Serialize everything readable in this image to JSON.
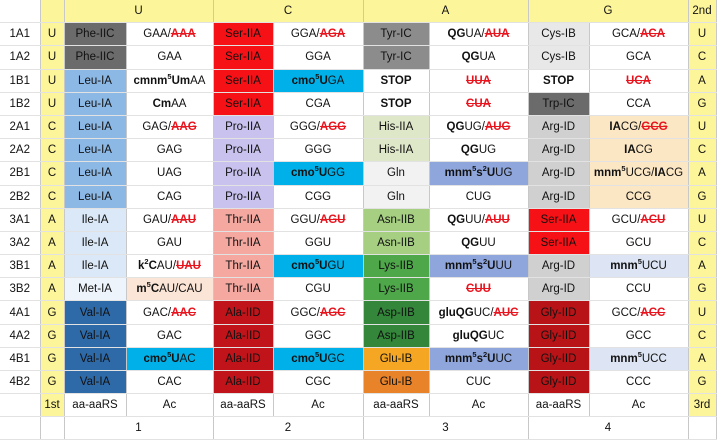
{
  "header": {
    "first_label": "1st",
    "second_label": "2nd",
    "third_label": "3rd",
    "second_base_headers": [
      "U",
      "C",
      "A",
      "G"
    ],
    "footer_labels": [
      "aa-aaRS",
      "Ac",
      "aa-aaRS",
      "Ac",
      "aa-aaRS",
      "Ac",
      "aa-aaRS",
      "Ac"
    ],
    "group_numbers": [
      "1",
      "2",
      "3",
      "4"
    ]
  },
  "colors": {
    "yellow_bar": "#fdf59a",
    "stop_red": "#e8141e",
    "ser_IIA": "#f61116",
    "leu_IA": "#8cb8e6",
    "val_IA": "#2e6aa8",
    "cmo5U": "#00b0e8",
    "mnm5s2U": "#8fa6dc"
  },
  "rows": [
    {
      "id": "1A1",
      "first": "U",
      "third": "U",
      "cells": [
        {
          "text": "Phe-IIC",
          "bg": "#6b6b6b"
        },
        {
          "html": "GAA/<span class='st'>AAA</span>"
        },
        {
          "text": "Ser-IIA",
          "bg": "#f61116",
          "light": true
        },
        {
          "html": "GGA/<span class='st'>AGA</span>"
        },
        {
          "text": "Tyr-IC",
          "bg": "#8c8c8c"
        },
        {
          "html": "<b>QG</b>UA/<span class='st'>AUA</span>"
        },
        {
          "text": "Cys-IB",
          "bg": "#e8e8e8"
        },
        {
          "html": "GCA/<span class='st'>ACA</span>"
        }
      ]
    },
    {
      "id": "1A2",
      "first": "U",
      "third": "C",
      "cells": [
        {
          "text": "Phe-IIC",
          "bg": "#6b6b6b"
        },
        {
          "text": "GAA"
        },
        {
          "text": "Ser-IIA",
          "bg": "#f61116",
          "light": true
        },
        {
          "text": "GGA"
        },
        {
          "text": "Tyr-IC",
          "bg": "#8c8c8c"
        },
        {
          "html": "<b>QG</b>UA"
        },
        {
          "text": "Cys-IB",
          "bg": "#e8e8e8"
        },
        {
          "text": "GCA"
        }
      ]
    },
    {
      "id": "1B1",
      "first": "U",
      "third": "A",
      "cells": [
        {
          "text": "Leu-IA",
          "bg": "#8cb8e6"
        },
        {
          "html": "<b>cmnm<sup>5</sup>Um</b>AA"
        },
        {
          "text": "Ser-IIA",
          "bg": "#f61116",
          "light": true
        },
        {
          "html": "<b>cmo<sup>5</sup>U</b>GA",
          "bg": "#00b0e8"
        },
        {
          "text": "STOP",
          "cls": "red"
        },
        {
          "html": "<span class='st'>UUA</span>"
        },
        {
          "text": "STOP",
          "cls": "red"
        },
        {
          "html": "<span class='st'>UCA</span>"
        }
      ]
    },
    {
      "id": "1B2",
      "first": "U",
      "third": "G",
      "cells": [
        {
          "text": "Leu-IA",
          "bg": "#8cb8e6"
        },
        {
          "html": "<b>Cm</b>AA"
        },
        {
          "text": "Ser-IIA",
          "bg": "#f61116",
          "light": true
        },
        {
          "text": "CGA"
        },
        {
          "text": "STOP",
          "cls": "red"
        },
        {
          "html": "<span class='st'>CUA</span>"
        },
        {
          "text": "Trp-IC",
          "bg": "#6b6b6b"
        },
        {
          "text": "CCA"
        }
      ]
    },
    {
      "id": "2A1",
      "first": "C",
      "third": "U",
      "cells": [
        {
          "text": "Leu-IA",
          "bg": "#8cb8e6"
        },
        {
          "html": "GAG/<span class='st'>AAG</span>"
        },
        {
          "text": "Pro-IIA",
          "bg": "#c9c2ee"
        },
        {
          "html": "GGG/<span class='st'>AGG</span>"
        },
        {
          "text": "His-IIA",
          "bg": "#dfe7c9"
        },
        {
          "html": "<b>QG</b>UG/<span class='st'>AUG</span>"
        },
        {
          "text": "Arg-ID",
          "bg": "#d0d0d0"
        },
        {
          "html": "<b>IA</b>CG/<span class='st'>GCG</span>",
          "bg": "#fce7c4"
        }
      ]
    },
    {
      "id": "2A2",
      "first": "C",
      "third": "C",
      "cells": [
        {
          "text": "Leu-IA",
          "bg": "#8cb8e6"
        },
        {
          "text": "GAG"
        },
        {
          "text": "Pro-IIA",
          "bg": "#c9c2ee"
        },
        {
          "text": "GGG"
        },
        {
          "text": "His-IIA",
          "bg": "#dfe7c9"
        },
        {
          "html": "<b>QG</b>UG"
        },
        {
          "text": "Arg-ID",
          "bg": "#d0d0d0"
        },
        {
          "html": "<b>IA</b>CG",
          "bg": "#fce7c4"
        }
      ]
    },
    {
      "id": "2B1",
      "first": "C",
      "third": "A",
      "cells": [
        {
          "text": "Leu-IA",
          "bg": "#8cb8e6"
        },
        {
          "text": "UAG"
        },
        {
          "text": "Pro-IIA",
          "bg": "#c9c2ee"
        },
        {
          "html": "<b>cmo<sup>5</sup>U</b>GG",
          "bg": "#00b0e8"
        },
        {
          "text": "Gln",
          "bg": "#f2f2f2"
        },
        {
          "html": "<b>mnm<sup>5</sup>s<sup>2</sup>U</b>UG",
          "bg": "#8fa6dc"
        },
        {
          "text": "Arg-ID",
          "bg": "#d0d0d0"
        },
        {
          "html": "<b>mnm<sup>5</sup></b>UCG/<b>IA</b>CG",
          "bg": "#fce7c4"
        }
      ]
    },
    {
      "id": "2B2",
      "first": "C",
      "third": "G",
      "cells": [
        {
          "text": "Leu-IA",
          "bg": "#8cb8e6"
        },
        {
          "text": "CAG"
        },
        {
          "text": "Pro-IIA",
          "bg": "#c9c2ee"
        },
        {
          "text": "CGG"
        },
        {
          "text": "Gln",
          "bg": "#f2f2f2"
        },
        {
          "text": "CUG"
        },
        {
          "text": "Arg-ID",
          "bg": "#d0d0d0"
        },
        {
          "text": "CCG",
          "bg": "#fce7c4"
        }
      ]
    },
    {
      "id": "3A1",
      "first": "A",
      "third": "U",
      "cells": [
        {
          "text": "Ile-IA",
          "bg": "#dbe8f7"
        },
        {
          "html": "GAU/<span class='st'>AAU</span>"
        },
        {
          "text": "Thr-IIA",
          "bg": "#f4a8a0"
        },
        {
          "html": "GGU/<span class='st'>AGU</span>"
        },
        {
          "text": "Asn-IIB",
          "bg": "#a6cf82"
        },
        {
          "html": "<b>QG</b>UU/<span class='st'>AUU</span>"
        },
        {
          "text": "Ser-IIA",
          "bg": "#f61116",
          "light": true
        },
        {
          "html": "GCU/<span class='st'>ACU</span>"
        }
      ]
    },
    {
      "id": "3A2",
      "first": "A",
      "third": "C",
      "cells": [
        {
          "text": "Ile-IA",
          "bg": "#dbe8f7"
        },
        {
          "text": "GAU"
        },
        {
          "text": "Thr-IIA",
          "bg": "#f4a8a0"
        },
        {
          "text": "GGU"
        },
        {
          "text": "Asn-IIB",
          "bg": "#a6cf82"
        },
        {
          "html": "<b>QG</b>UU"
        },
        {
          "text": "Ser-IIA",
          "bg": "#f61116",
          "light": true
        },
        {
          "text": "GCU"
        }
      ]
    },
    {
      "id": "3B1",
      "first": "A",
      "third": "A",
      "cells": [
        {
          "text": "Ile-IA",
          "bg": "#dbe8f7"
        },
        {
          "html": "<b>k<sup>2</sup>C</b>AU/<span class='st'>UAU</span>"
        },
        {
          "text": "Thr-IIA",
          "bg": "#f4a8a0"
        },
        {
          "html": "<b>cmo<sup>5</sup>U</b>GU",
          "bg": "#00b0e8"
        },
        {
          "text": "Lys-IIB",
          "bg": "#4ea84a"
        },
        {
          "html": "<b>mnm<sup>5</sup>s<sup>2</sup>U</b>UU",
          "bg": "#8fa6dc"
        },
        {
          "text": "Arg-ID",
          "bg": "#d0d0d0"
        },
        {
          "html": "<b>mnm<sup>5</sup></b>UCU",
          "bg": "#dde5f5"
        }
      ]
    },
    {
      "id": "3B2",
      "first": "A",
      "third": "G",
      "cells": [
        {
          "text": "Met-IA",
          "bg": "#eef4fb"
        },
        {
          "html": "<b>m<sup>5</sup>C</b>AU/CAU",
          "bg": "#fbe5d6"
        },
        {
          "text": "Thr-IIA",
          "bg": "#f4a8a0"
        },
        {
          "text": "CGU"
        },
        {
          "text": "Lys-IIB",
          "bg": "#4ea84a"
        },
        {
          "html": "<span class='st'>CUU</span>"
        },
        {
          "text": "Arg-ID",
          "bg": "#d0d0d0"
        },
        {
          "text": "CCU"
        }
      ]
    },
    {
      "id": "4A1",
      "first": "G",
      "third": "U",
      "cells": [
        {
          "text": "Val-IA",
          "bg": "#2e6aa8",
          "light": true
        },
        {
          "html": "GAC/<span class='st'>AAC</span>"
        },
        {
          "text": "Ala-IID",
          "bg": "#c0141a",
          "light": true
        },
        {
          "html": "GGC/<span class='st'>AGC</span>"
        },
        {
          "text": "Asp-IIB",
          "bg": "#33863a",
          "light": true
        },
        {
          "html": "<b>gluQG</b>UC/<span class='st'>AUC</span>"
        },
        {
          "text": "Gly-IID",
          "bg": "#b81418",
          "light": true
        },
        {
          "html": "GCC/<span class='st'>ACC</span>"
        }
      ]
    },
    {
      "id": "4A2",
      "first": "G",
      "third": "C",
      "cells": [
        {
          "text": "Val-IA",
          "bg": "#2e6aa8",
          "light": true
        },
        {
          "text": "GAC"
        },
        {
          "text": "Ala-IID",
          "bg": "#c0141a",
          "light": true
        },
        {
          "text": "GGC"
        },
        {
          "text": "Asp-IIB",
          "bg": "#33863a",
          "light": true
        },
        {
          "html": "<b>gluQG</b>UC"
        },
        {
          "text": "Gly-IID",
          "bg": "#b81418",
          "light": true
        },
        {
          "text": "GCC"
        }
      ]
    },
    {
      "id": "4B1",
      "first": "G",
      "third": "A",
      "cells": [
        {
          "text": "Val-IA",
          "bg": "#2e6aa8",
          "light": true
        },
        {
          "html": "<b>cmo<sup>5</sup>U</b>AC",
          "bg": "#00b0e8"
        },
        {
          "text": "Ala-IID",
          "bg": "#c0141a",
          "light": true
        },
        {
          "html": "<b>cmo<sup>5</sup>U</b>GC",
          "bg": "#00b0e8"
        },
        {
          "text": "Glu-IB",
          "bg": "#f5a623"
        },
        {
          "html": "<b>mnm<sup>5</sup>s<sup>2</sup>U</b>UC",
          "bg": "#8fa6dc"
        },
        {
          "text": "Gly-IID",
          "bg": "#b81418",
          "light": true
        },
        {
          "html": "<b>mnm<sup>5</sup></b>UCC",
          "bg": "#dde5f5"
        }
      ]
    },
    {
      "id": "4B2",
      "first": "G",
      "third": "G",
      "cells": [
        {
          "text": "Val-IA",
          "bg": "#2e6aa8",
          "light": true
        },
        {
          "text": "CAC"
        },
        {
          "text": "Ala-IID",
          "bg": "#c0141a",
          "light": true
        },
        {
          "text": "CGC"
        },
        {
          "text": "Glu-IB",
          "bg": "#e8832a"
        },
        {
          "text": "CUC"
        },
        {
          "text": "Gly-IID",
          "bg": "#b81418",
          "light": true
        },
        {
          "text": "CCC"
        }
      ]
    }
  ]
}
